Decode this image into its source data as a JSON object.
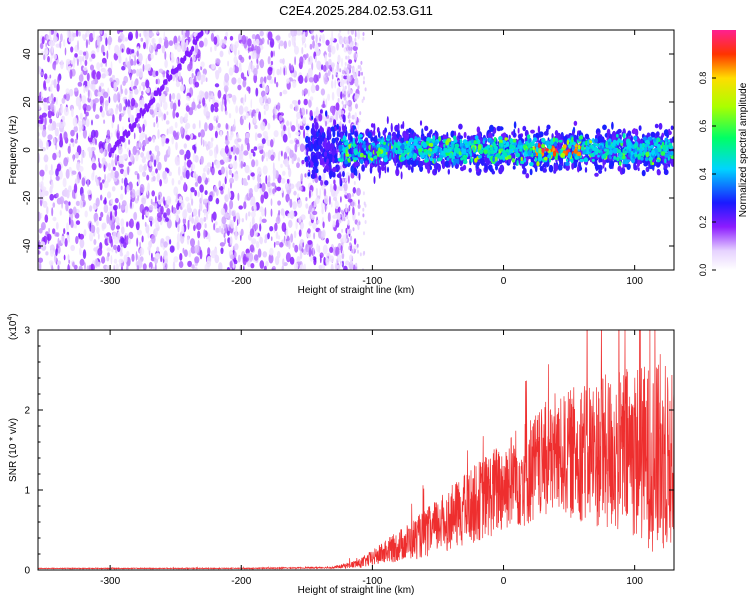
{
  "title": "C2E4.2025.284.02.53.G11",
  "colors": {
    "snr_line": "#ee2e2e",
    "spectrogram_scatter": "#6a1fe0",
    "background": "#ffffff"
  },
  "chart_data": [
    {
      "type": "heatmap",
      "title": "C2E4.2025.284.02.53.G11",
      "xlabel": "Height of straight line (km)",
      "ylabel": "Frequency (Hz)",
      "xlim": [
        -355,
        130
      ],
      "ylim": [
        -50,
        50
      ],
      "xticks": [
        -300,
        -200,
        -100,
        0,
        100
      ],
      "yticks": [
        -40,
        -20,
        0,
        20,
        40
      ],
      "xtick_labels": [
        "-300",
        "-200",
        "-100",
        "0",
        "100"
      ],
      "ytick_labels": [
        "-40",
        "-20",
        "0",
        "20",
        "40"
      ],
      "colorbar": {
        "label": "Normalized spectral amplitude",
        "range": [
          0,
          1
        ],
        "ticks": [
          0.0,
          0.2,
          0.4,
          0.6,
          0.8
        ],
        "tick_labels": [
          "0.0",
          "0.2",
          "0.4",
          "0.6",
          "0.8"
        ]
      },
      "features": {
        "noise_region_x": [
          -355,
          -125
        ],
        "noise_amplitude": 0.15,
        "signal_band_x": [
          -150,
          130
        ],
        "signal_center_hz": 0,
        "signal_halfwidth_hz": 6,
        "signal_amplitude": [
          0.35,
          0.95
        ],
        "diagonal_streak": {
          "x": [
            -300,
            -230
          ],
          "y": [
            -2,
            48
          ]
        }
      }
    },
    {
      "type": "line",
      "xlabel": "Height of straight line (km)",
      "ylabel": "SNR (10 * v/v)",
      "y_multiplier_label": "(x10",
      "y_multiplier_exp": "4",
      "y_multiplier_close": ")",
      "xlim": [
        -355,
        130
      ],
      "ylim": [
        0,
        3
      ],
      "xticks": [
        -300,
        -200,
        -100,
        0,
        100
      ],
      "yticks": [
        0,
        1,
        2,
        3
      ],
      "xtick_labels": [
        "-300",
        "-200",
        "-100",
        "0",
        "100"
      ],
      "ytick_labels": [
        "0",
        "1",
        "2",
        "3"
      ],
      "envelope_x": [
        -355,
        -300,
        -200,
        -130,
        -110,
        -100,
        -80,
        -60,
        -40,
        -20,
        0,
        20,
        40,
        60,
        80,
        100,
        120,
        130
      ],
      "envelope_mean": [
        0.02,
        0.02,
        0.02,
        0.03,
        0.08,
        0.15,
        0.3,
        0.45,
        0.65,
        0.85,
        1.05,
        1.25,
        1.4,
        1.5,
        1.45,
        1.5,
        1.35,
        1.4
      ],
      "envelope_spread": [
        0.005,
        0.005,
        0.006,
        0.01,
        0.06,
        0.1,
        0.2,
        0.3,
        0.4,
        0.5,
        0.6,
        0.7,
        0.7,
        0.9,
        1.0,
        1.1,
        1.2,
        1.1
      ]
    }
  ]
}
